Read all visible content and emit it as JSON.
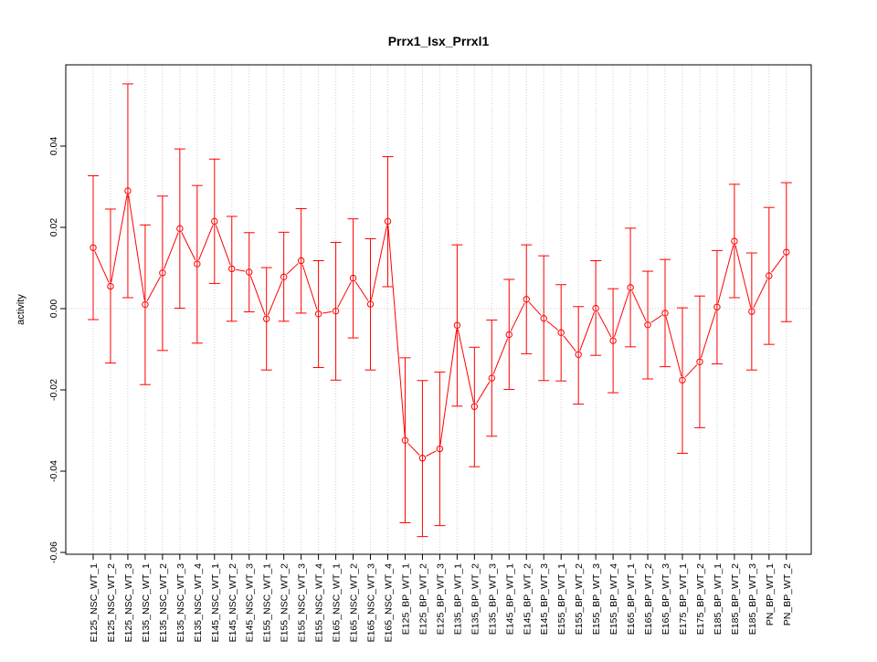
{
  "chart_data": {
    "type": "line",
    "title": "Prrx1_Isx_Prrxl1",
    "xlabel": "",
    "ylabel": "activity",
    "ylim": [
      -0.06,
      0.06
    ],
    "yticks": [
      -0.06,
      -0.04,
      -0.02,
      0.0,
      0.02,
      0.04
    ],
    "ytick_labels": [
      "-0.06",
      "-0.04",
      "-0.02",
      "0.00",
      "0.02",
      "0.04"
    ],
    "grid": true,
    "color": "#ff0000",
    "categories": [
      "E125_NSC_WT_1",
      "E125_NSC_WT_2",
      "E125_NSC_WT_3",
      "E135_NSC_WT_1",
      "E135_NSC_WT_2",
      "E135_NSC_WT_3",
      "E135_NSC_WT_4",
      "E145_NSC_WT_1",
      "E145_NSC_WT_2",
      "E145_NSC_WT_3",
      "E155_NSC_WT_1",
      "E155_NSC_WT_2",
      "E155_NSC_WT_3",
      "E155_NSC_WT_4",
      "E165_NSC_WT_1",
      "E165_NSC_WT_2",
      "E165_NSC_WT_3",
      "E165_NSC_WT_4",
      "E125_BP_WT_1",
      "E125_BP_WT_2",
      "E125_BP_WT_3",
      "E135_BP_WT_1",
      "E135_BP_WT_2",
      "E135_BP_WT_3",
      "E145_BP_WT_1",
      "E145_BP_WT_2",
      "E145_BP_WT_3",
      "E155_BP_WT_1",
      "E155_BP_WT_2",
      "E155_BP_WT_3",
      "E155_BP_WT_4",
      "E165_BP_WT_1",
      "E165_BP_WT_2",
      "E165_BP_WT_3",
      "E175_BP_WT_1",
      "E175_BP_WT_2",
      "E185_BP_WT_1",
      "E185_BP_WT_2",
      "E185_BP_WT_3",
      "PN_BP_WT_1",
      "PN_BP_WT_2"
    ],
    "values": [
      0.015,
      0.0055,
      0.029,
      0.001,
      0.0088,
      0.0197,
      0.011,
      0.0215,
      0.0098,
      0.009,
      -0.0025,
      0.0078,
      0.0118,
      -0.0013,
      -0.0006,
      0.0075,
      0.0011,
      0.0215,
      -0.0324,
      -0.0368,
      -0.0345,
      -0.0041,
      -0.0241,
      -0.0171,
      -0.0064,
      0.0023,
      -0.0024,
      -0.0059,
      -0.0113,
      0.0001,
      -0.0079,
      0.0052,
      -0.004,
      -0.0011,
      -0.0176,
      -0.0131,
      0.0004,
      0.0166,
      -0.0007,
      0.0081,
      0.0139
    ],
    "upper": [
      0.0327,
      0.0245,
      0.0553,
      0.0206,
      0.0277,
      0.0393,
      0.0303,
      0.0368,
      0.0227,
      0.0187,
      0.0101,
      0.0188,
      0.0246,
      0.0118,
      0.0163,
      0.0221,
      0.0172,
      0.0374,
      -0.0121,
      -0.0177,
      -0.0156,
      0.0157,
      -0.0095,
      -0.0028,
      0.0072,
      0.0157,
      0.013,
      0.0059,
      0.0005,
      0.0118,
      0.0049,
      0.0198,
      0.0092,
      0.0121,
      0.0002,
      0.0031,
      0.0143,
      0.0306,
      0.0137,
      0.0249,
      0.031
    ],
    "lower": [
      -0.0027,
      -0.0134,
      0.0027,
      -0.0187,
      -0.0103,
      0.0001,
      -0.0085,
      0.0062,
      -0.0031,
      -0.0008,
      -0.0151,
      -0.0031,
      -0.0011,
      -0.0145,
      -0.0176,
      -0.0072,
      -0.0151,
      0.0054,
      -0.0527,
      -0.0561,
      -0.0534,
      -0.024,
      -0.0389,
      -0.0314,
      -0.0199,
      -0.0111,
      -0.0177,
      -0.0178,
      -0.0235,
      -0.0115,
      -0.0207,
      -0.0094,
      -0.0173,
      -0.0143,
      -0.0356,
      -0.0293,
      -0.0136,
      0.0027,
      -0.0151,
      -0.0088,
      -0.0032
    ]
  }
}
